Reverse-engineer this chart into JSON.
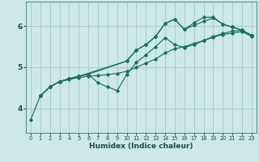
{
  "xlabel": "Humidex (Indice chaleur)",
  "bg_color": "#cce8e8",
  "grid_color": "#aacccc",
  "line_color": "#1a6e60",
  "xlim": [
    -0.5,
    23.5
  ],
  "ylim": [
    3.4,
    6.6
  ],
  "yticks": [
    4,
    5,
    6
  ],
  "xticks": [
    0,
    1,
    2,
    3,
    4,
    5,
    6,
    7,
    8,
    9,
    10,
    11,
    12,
    13,
    14,
    15,
    16,
    17,
    18,
    19,
    20,
    21,
    22,
    23
  ],
  "lines": [
    {
      "x": [
        0,
        1,
        2,
        3,
        4,
        5,
        6,
        7,
        8,
        9,
        10,
        11,
        12,
        13,
        14,
        15,
        16,
        17,
        18,
        19,
        20,
        21,
        22,
        23
      ],
      "y": [
        3.72,
        4.3,
        4.52,
        4.65,
        4.7,
        4.75,
        4.78,
        4.8,
        4.82,
        4.85,
        4.9,
        5.0,
        5.1,
        5.2,
        5.35,
        5.45,
        5.5,
        5.58,
        5.65,
        5.73,
        5.8,
        5.83,
        5.87,
        5.75
      ]
    },
    {
      "x": [
        1,
        2,
        3,
        4,
        5,
        6,
        7,
        8,
        9,
        10,
        11,
        12,
        13,
        14,
        15,
        16,
        17,
        18,
        19,
        20,
        21,
        22,
        23
      ],
      "y": [
        4.3,
        4.52,
        4.65,
        4.72,
        4.78,
        4.83,
        4.62,
        4.52,
        4.43,
        4.82,
        5.12,
        5.3,
        5.5,
        5.72,
        5.55,
        5.48,
        5.55,
        5.65,
        5.75,
        5.82,
        5.88,
        5.9,
        5.78
      ]
    },
    {
      "x": [
        1,
        2,
        3,
        4,
        5,
        6,
        10,
        11,
        12,
        13,
        14,
        15,
        16,
        17,
        18,
        19,
        20,
        21,
        22,
        23
      ],
      "y": [
        4.3,
        4.52,
        4.65,
        4.72,
        4.78,
        4.83,
        5.15,
        5.42,
        5.55,
        5.75,
        6.07,
        6.17,
        5.92,
        6.02,
        6.12,
        6.2,
        6.05,
        5.98,
        5.9,
        5.78
      ]
    },
    {
      "x": [
        1,
        2,
        3,
        4,
        5,
        10,
        11,
        12,
        13,
        14,
        15,
        16,
        17,
        18,
        19,
        20,
        21,
        22,
        23
      ],
      "y": [
        4.3,
        4.52,
        4.65,
        4.72,
        4.78,
        5.15,
        5.42,
        5.55,
        5.75,
        6.07,
        6.17,
        5.92,
        6.08,
        6.22,
        6.22,
        6.05,
        5.98,
        5.9,
        5.78
      ]
    }
  ]
}
